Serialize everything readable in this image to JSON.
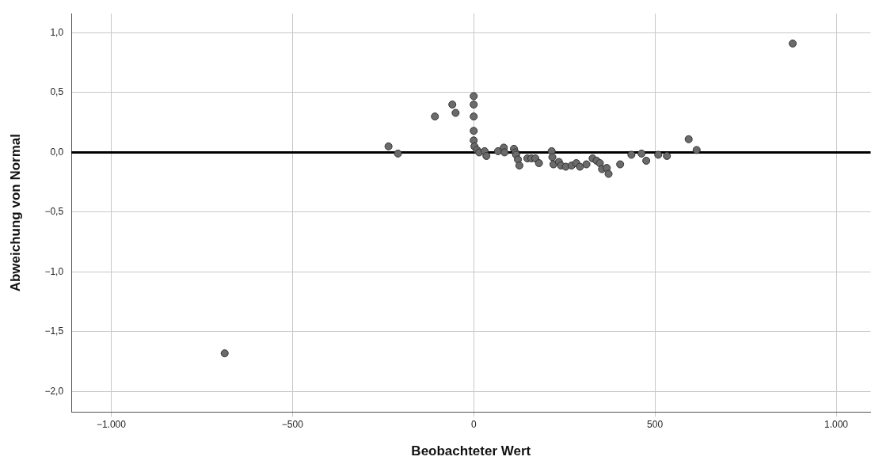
{
  "chart_data": {
    "type": "scatter",
    "xlabel": "Beobachteter Wert",
    "ylabel": "Abweichung von Normal",
    "xlim": [
      -1110,
      1095
    ],
    "ylim": [
      -2.17,
      1.16
    ],
    "xticks": [
      {
        "value": -1000,
        "label": "−1.000"
      },
      {
        "value": -500,
        "label": "−500"
      },
      0,
      500,
      {
        "value": 1000,
        "label": "1.000"
      }
    ],
    "yticks": [
      {
        "value": -2,
        "label": "−2,0"
      },
      {
        "value": -1.5,
        "label": "−1,5"
      },
      {
        "value": -1,
        "label": "−1,0"
      },
      {
        "value": -0.5,
        "label": "−0,5"
      },
      {
        "value": 0,
        "label": "0,0"
      },
      {
        "value": 0.5,
        "label": "0,5"
      },
      {
        "value": 1,
        "label": "1,0"
      }
    ],
    "grid": true,
    "legend": false,
    "marker": "circle",
    "ref_lines": [
      {
        "axis": "y",
        "value": 0,
        "color": "#000000"
      }
    ],
    "series": [
      {
        "color": "#6b6b6b",
        "x": [
          880,
          -687,
          -235,
          -209,
          -107,
          -59,
          -50,
          0,
          0,
          0,
          0,
          0,
          2,
          9,
          15,
          30,
          35,
          67,
          83,
          85,
          111,
          115,
          117,
          122,
          126,
          148,
          159,
          170,
          180,
          215,
          217,
          220,
          235,
          241,
          254,
          270,
          283,
          293,
          311,
          328,
          339,
          348,
          354,
          367,
          372,
          404,
          435,
          463,
          476,
          509,
          533,
          593,
          615
        ],
        "values": [
          0.91,
          -1.68,
          0.05,
          -0.01,
          0.3,
          0.4,
          0.33,
          0.47,
          0.4,
          0.3,
          0.18,
          0.1,
          0.05,
          0.02,
          0.0,
          0.01,
          -0.03,
          0.01,
          0.04,
          0,
          0.03,
          0,
          -0.02,
          -0.06,
          -0.11,
          -0.05,
          -0.05,
          -0.05,
          -0.09,
          0.01,
          -0.04,
          -0.1,
          -0.08,
          -0.11,
          -0.12,
          -0.11,
          -0.09,
          -0.12,
          -0.1,
          -0.05,
          -0.07,
          -0.09,
          -0.14,
          -0.13,
          -0.18,
          -0.1,
          -0.02,
          -0.01,
          -0.07,
          -0.02,
          -0.03,
          0.11,
          0.02
        ]
      }
    ]
  }
}
